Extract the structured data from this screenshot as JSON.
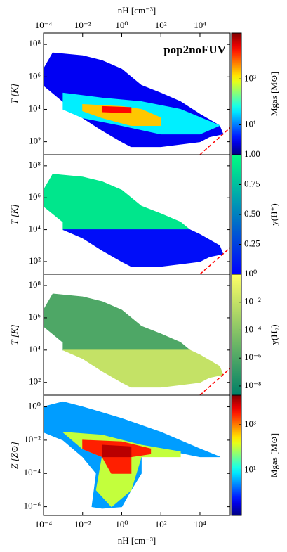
{
  "chart_data": [
    {
      "type": "histogram2d",
      "title": "pop2noFUV",
      "ylabel": "T [K]",
      "xlabel": "nH [cm⁻³]",
      "xaxis": "top",
      "xlog": true,
      "ylog": true,
      "xlim": [
        0.0001,
        350000
      ],
      "ylim": [
        16,
        500000000
      ],
      "xticks": [
        {
          "value": 0.0001,
          "label": "10⁻⁴"
        },
        {
          "value": 0.01,
          "label": "10⁻²"
        },
        {
          "value": 1,
          "label": "10⁰"
        },
        {
          "value": 100,
          "label": "10²"
        },
        {
          "value": 10000,
          "label": "10⁴"
        }
      ],
      "yticks": [
        {
          "value": 100,
          "label": "10²"
        },
        {
          "value": 10000,
          "label": "10⁴"
        },
        {
          "value": 1000000,
          "label": "10⁶"
        },
        {
          "value": 100000000,
          "label": "10⁸"
        }
      ],
      "colorbar": {
        "label": "Mgas [M⊙]",
        "scale": "log",
        "colormap": "jet",
        "lim": [
          0.5,
          100000
        ],
        "ticks": [
          {
            "value": 10,
            "label": "10¹"
          },
          {
            "value": 1000,
            "label": "10³"
          }
        ]
      },
      "regions": [
        {
          "value": 2,
          "x": [
            0.0003,
            0.01,
            0.1,
            1,
            10,
            100,
            1000,
            10000,
            100000,
            150000,
            30000,
            10000,
            100,
            3,
            1,
            0.1,
            0.01,
            0.001,
            0.0001,
            0.0001
          ],
          "y": [
            30000000,
            20000000,
            10000000,
            3000000,
            300000,
            100000,
            30000,
            5000,
            1000,
            300,
            200,
            100,
            50,
            50,
            100,
            500,
            3000,
            30000,
            300000,
            3000000
          ]
        },
        {
          "value": 40,
          "x": [
            0.001,
            0.1,
            10,
            1000,
            100000,
            10000,
            100,
            1,
            0.01,
            0.001
          ],
          "y": [
            100000,
            50000,
            30000,
            10000,
            1000,
            300,
            300,
            1000,
            3000,
            10000
          ]
        },
        {
          "value": 2000,
          "x": [
            0.01,
            1,
            10,
            100,
            100,
            3,
            0.1,
            0.01
          ],
          "y": [
            20000,
            15000,
            10000,
            3000,
            1000,
            1000,
            3000,
            8000
          ]
        },
        {
          "value": 20000,
          "x": [
            0.1,
            3,
            3,
            0.1
          ],
          "y": [
            15000,
            13000,
            6000,
            7000
          ]
        }
      ],
      "line": {
        "color": "#ff0000",
        "x": [
          10000,
          350000
        ],
        "y": [
          16,
          740
        ]
      }
    },
    {
      "type": "histogram2d",
      "ylabel": "T [K]",
      "xlog": true,
      "ylog": true,
      "xlim": [
        0.0001,
        350000
      ],
      "ylim": [
        16,
        500000000
      ],
      "yticks": [
        {
          "value": 100,
          "label": "10²"
        },
        {
          "value": 10000,
          "label": "10⁴"
        },
        {
          "value": 1000000,
          "label": "10⁶"
        },
        {
          "value": 100000000,
          "label": "10⁸"
        }
      ],
      "colorbar": {
        "label": "y(H⁺)",
        "scale": "linear",
        "colormap": "winter",
        "lim": [
          0,
          1
        ],
        "ticks": [
          {
            "value": 0.25,
            "label": "0.25"
          },
          {
            "value": 0.5,
            "label": "0.50"
          },
          {
            "value": 0.75,
            "label": "0.75"
          },
          {
            "value": 1,
            "label": "1.00"
          }
        ]
      },
      "regions": [
        {
          "value": 0.9,
          "x": [
            0.0003,
            0.01,
            0.1,
            1,
            10,
            100,
            1000,
            3000,
            0.001,
            0.001,
            0.0001,
            0.0001
          ],
          "y": [
            30000000,
            20000000,
            10000000,
            3000000,
            300000,
            100000,
            30000,
            10000,
            10000,
            30000,
            300000,
            3000000
          ]
        },
        {
          "value": 0.05,
          "x": [
            0.001,
            3000,
            10000,
            100000,
            150000,
            30000,
            10000,
            100,
            3,
            1,
            0.1,
            0.01
          ],
          "y": [
            10000,
            10000,
            5000,
            1000,
            300,
            200,
            100,
            50,
            50,
            100,
            500,
            3000
          ]
        }
      ],
      "line": {
        "color": "#ff0000",
        "x": [
          10000,
          350000
        ],
        "y": [
          16,
          740
        ]
      }
    },
    {
      "type": "histogram2d",
      "ylabel": "T [K]",
      "xlog": true,
      "ylog": true,
      "xlim": [
        0.0001,
        350000
      ],
      "ylim": [
        16,
        500000000
      ],
      "yticks": [
        {
          "value": 100,
          "label": "10²"
        },
        {
          "value": 10000,
          "label": "10⁴"
        },
        {
          "value": 1000000,
          "label": "10⁶"
        },
        {
          "value": 100000000,
          "label": "10⁸"
        }
      ],
      "colorbar": {
        "label": "y(H₂)",
        "scale": "log",
        "colormap": "summer",
        "lim": [
          2.2e-09,
          1
        ],
        "ticks": [
          {
            "value": 1e-08,
            "label": "10⁻⁸"
          },
          {
            "value": 1e-06,
            "label": "10⁻⁶"
          },
          {
            "value": 0.0001,
            "label": "10⁻⁴"
          },
          {
            "value": 0.01,
            "label": "10⁻²"
          },
          {
            "value": 1,
            "label": "10⁰"
          }
        ]
      },
      "regions": [
        {
          "value": 1e-06,
          "x": [
            0.0003,
            0.01,
            0.1,
            1,
            10,
            100,
            1000,
            3000,
            0.001,
            0.001,
            0.0001,
            0.0001
          ],
          "y": [
            30000000,
            20000000,
            10000000,
            3000000,
            300000,
            100000,
            30000,
            10000,
            10000,
            30000,
            300000,
            3000000
          ]
        },
        {
          "value": 0.01,
          "x": [
            0.001,
            3000,
            10000,
            100000,
            150000,
            30000,
            10000,
            100,
            3,
            1,
            0.1,
            0.01
          ],
          "y": [
            10000,
            10000,
            5000,
            1000,
            300,
            200,
            100,
            50,
            50,
            100,
            500,
            3000
          ]
        }
      ],
      "line": {
        "color": "#ff0000",
        "x": [
          10000,
          350000
        ],
        "y": [
          16,
          740
        ]
      }
    },
    {
      "type": "histogram2d",
      "ylabel": "Z [Z⊙]",
      "xlabel": "nH [cm⁻³]",
      "xaxis": "bottom",
      "xlog": true,
      "ylog": true,
      "xlim": [
        0.0001,
        350000
      ],
      "ylim": [
        3e-07,
        5
      ],
      "xticks": [
        {
          "value": 0.0001,
          "label": "10⁻⁴"
        },
        {
          "value": 0.01,
          "label": "10⁻²"
        },
        {
          "value": 1,
          "label": "10⁰"
        },
        {
          "value": 100,
          "label": "10²"
        },
        {
          "value": 10000,
          "label": "10⁴"
        }
      ],
      "yticks": [
        {
          "value": 1e-06,
          "label": "10⁻⁶"
        },
        {
          "value": 0.0001,
          "label": "10⁻⁴"
        },
        {
          "value": 0.01,
          "label": "10⁻²"
        },
        {
          "value": 1,
          "label": "10⁰"
        }
      ],
      "colorbar": {
        "label": "Mgas [M⊙]",
        "scale": "log",
        "colormap": "jet",
        "lim": [
          0.1,
          20000
        ],
        "ticks": [
          {
            "value": 10,
            "label": "10¹"
          },
          {
            "value": 1000,
            "label": "10³"
          }
        ]
      },
      "regions": [
        {
          "value": 3,
          "x": [
            0.0001,
            0.001,
            0.01,
            1,
            100,
            10000,
            100000,
            10000,
            100,
            10,
            10,
            3,
            1,
            0.1,
            0.03,
            0.05,
            0.01,
            0.001,
            0.0001
          ],
          "y": [
            1,
            2,
            1,
            0.2,
            0.03,
            0.003,
            0.001,
            0.001,
            0.003,
            0.001,
            0.0001,
            1e-05,
            1e-06,
            8e-07,
            1e-06,
            0.0001,
            0.001,
            0.01,
            0.03
          ]
        },
        {
          "value": 100,
          "x": [
            0.001,
            0.1,
            10,
            1000,
            1000,
            10,
            3,
            0.3,
            0.05,
            0.1,
            0.01
          ],
          "y": [
            0.03,
            0.02,
            0.005,
            0.002,
            0.001,
            0.001,
            1e-05,
            1e-06,
            1e-05,
            0.001,
            0.003
          ]
        },
        {
          "value": 3000,
          "x": [
            0.01,
            1,
            30,
            30,
            3,
            3,
            0.3,
            0.1,
            0.01
          ],
          "y": [
            0.01,
            0.008,
            0.003,
            0.0015,
            0.001,
            0.0001,
            0.0001,
            0.001,
            0.003
          ]
        },
        {
          "value": 10000,
          "x": [
            0.1,
            3,
            3,
            0.1
          ],
          "y": [
            0.005,
            0.004,
            0.001,
            0.001
          ]
        }
      ]
    }
  ]
}
